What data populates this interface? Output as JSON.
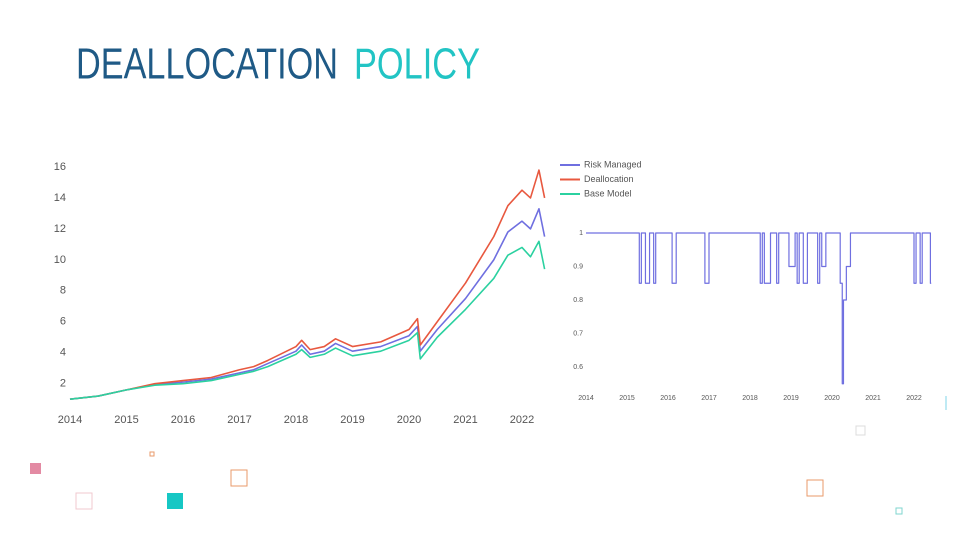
{
  "header": {
    "title_main": "DEALLOCATION",
    "title_accent": "POLICY"
  },
  "chart_data": [
    {
      "type": "line",
      "x": [
        2014.0,
        2014.5,
        2015.0,
        2015.5,
        2016.0,
        2016.5,
        2017.0,
        2017.25,
        2017.5,
        2018.0,
        2018.1,
        2018.25,
        2018.5,
        2018.7,
        2019.0,
        2019.5,
        2020.0,
        2020.15,
        2020.2,
        2020.5,
        2021.0,
        2021.5,
        2021.75,
        2022.0,
        2022.15,
        2022.3,
        2022.4
      ],
      "series": [
        {
          "name": "Risk Managed",
          "color": "#6f6fe0",
          "values": [
            1,
            1.2,
            1.6,
            1.95,
            2.1,
            2.3,
            2.7,
            2.9,
            3.3,
            4.1,
            4.5,
            3.9,
            4.1,
            4.6,
            4.1,
            4.4,
            5.1,
            5.7,
            4.1,
            5.5,
            7.5,
            10,
            11.8,
            12.5,
            12.0,
            13.3,
            11.5
          ]
        },
        {
          "name": "Deallocation",
          "color": "#e8583f",
          "values": [
            1,
            1.2,
            1.6,
            2.0,
            2.2,
            2.4,
            2.9,
            3.1,
            3.5,
            4.4,
            4.8,
            4.2,
            4.4,
            4.9,
            4.4,
            4.7,
            5.5,
            6.2,
            4.5,
            6.0,
            8.5,
            11.5,
            13.5,
            14.5,
            14.0,
            15.8,
            14.0
          ]
        },
        {
          "name": "Base Model",
          "color": "#2bd1a0",
          "values": [
            1,
            1.2,
            1.6,
            1.9,
            2.0,
            2.2,
            2.6,
            2.8,
            3.1,
            3.9,
            4.2,
            3.7,
            3.9,
            4.3,
            3.8,
            4.1,
            4.8,
            5.3,
            3.6,
            5.0,
            6.8,
            8.8,
            10.3,
            10.8,
            10.2,
            11.2,
            9.4
          ]
        }
      ],
      "xlim": [
        2014,
        2022.5
      ],
      "xticks": [
        2014,
        2015,
        2016,
        2017,
        2018,
        2019,
        2020,
        2021,
        2022
      ],
      "ylim": [
        0.5,
        16.8
      ],
      "yticks": [
        2,
        4,
        6,
        8,
        10,
        12,
        14,
        16
      ],
      "grid": false,
      "legend": "right"
    },
    {
      "type": "line",
      "step": true,
      "x": [
        2014.0,
        2015.3,
        2015.35,
        2015.45,
        2015.55,
        2015.65,
        2015.7,
        2016.1,
        2016.2,
        2016.9,
        2017.0,
        2018.25,
        2018.3,
        2018.35,
        2018.5,
        2018.65,
        2018.7,
        2018.95,
        2019.1,
        2019.15,
        2019.2,
        2019.3,
        2019.4,
        2019.65,
        2019.7,
        2019.75,
        2019.85,
        2020.2,
        2020.25,
        2020.28,
        2020.35,
        2020.45,
        2022.0,
        2022.05,
        2022.15,
        2022.2,
        2022.4,
        2022.42
      ],
      "series": [
        {
          "name": null,
          "color": "#6f6fe0",
          "values": [
            1,
            0.85,
            1,
            0.85,
            1,
            0.85,
            1,
            0.85,
            1,
            0.85,
            1,
            0.85,
            1,
            0.85,
            1,
            0.85,
            1,
            0.9,
            1,
            0.85,
            1,
            0.85,
            1,
            0.85,
            1,
            0.9,
            1,
            0.85,
            0.55,
            0.8,
            0.9,
            1,
            0.85,
            1,
            0.85,
            1,
            0.85,
            0.85
          ]
        }
      ],
      "xlim": [
        2014,
        2022.5
      ],
      "xticks": [
        2014,
        2015,
        2016,
        2017,
        2018,
        2019,
        2020,
        2021,
        2022
      ],
      "ylim": [
        0.52,
        1.05
      ],
      "yticks": [
        0.6,
        0.7,
        0.8,
        0.9,
        1
      ],
      "grid": false
    }
  ]
}
